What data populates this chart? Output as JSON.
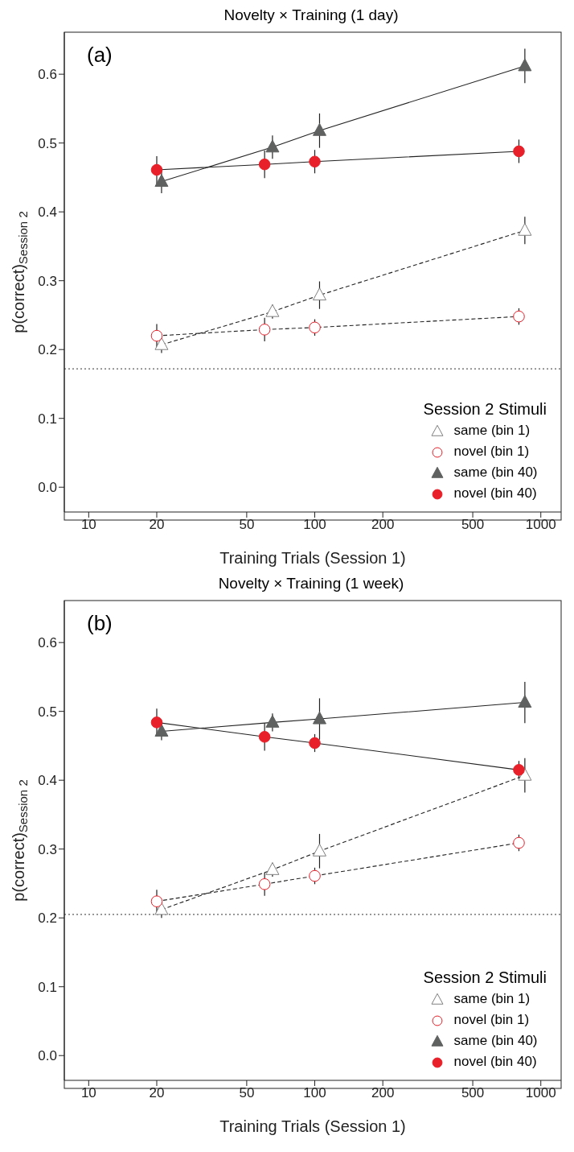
{
  "chart_data": [
    {
      "type": "line",
      "title": "Novelty × Training (1 day)",
      "xlabel": "Training Trials (Session 1)",
      "ylabel": "p(correct)$_{Session 2}$",
      "legend_title": "Session 2 Stimuli",
      "legend": "bottom right",
      "log": "x",
      "annotations": [
        "(a)"
      ],
      "xlim": [
        7.8,
        1230
      ],
      "xticks": [
        10,
        20,
        50,
        100,
        200,
        500,
        1000
      ],
      "ylim": [
        -0.036,
        0.661
      ],
      "yticks": [
        {
          "value": 0,
          "label": "0.0"
        },
        0.1,
        0.2,
        0.3,
        0.4,
        0.5,
        0.6
      ],
      "ref_lines": [
        {
          "axis": "y",
          "value": 0.172,
          "line_style": "dotted",
          "color": "#333333"
        }
      ],
      "series": [
        {
          "name": "same (bin 1)",
          "color": "#808080",
          "marker": "triangle",
          "line_style": "dashed",
          "x": [
            21,
            65,
            105,
            850
          ],
          "values": [
            0.207,
            0.255,
            0.279,
            0.373
          ],
          "errors": [
            0.012,
            0.01,
            0.02,
            0.02
          ]
        },
        {
          "name": "novel (bin 1)",
          "color": "#e8202a",
          "marker": "circle",
          "line_style": "dashed",
          "x": [
            20,
            60,
            100,
            800
          ],
          "values": [
            0.22,
            0.229,
            0.232,
            0.248
          ],
          "errors": [
            0.017,
            0.017,
            0.012,
            0.012
          ]
        },
        {
          "name": "same (bin 40)",
          "color": "#5f6060",
          "marker": "triangle",
          "line_style": "solid",
          "x": [
            21,
            65,
            105,
            850
          ],
          "values": [
            0.444,
            0.494,
            0.518,
            0.612
          ],
          "errors": [
            0.017,
            0.017,
            0.025,
            0.025
          ]
        },
        {
          "name": "novel (bin 40)",
          "color": "#e8202a",
          "marker": "circle",
          "line_style": "solid",
          "x": [
            20,
            60,
            100,
            800
          ],
          "values": [
            0.461,
            0.469,
            0.473,
            0.488
          ],
          "errors": [
            0.02,
            0.02,
            0.017,
            0.017
          ]
        }
      ]
    },
    {
      "type": "line",
      "title": "Novelty × Training (1 week)",
      "xlabel": "Training Trials (Session 1)",
      "ylabel": "p(correct)$_{Session 2}$",
      "legend_title": "Session 2 Stimuli",
      "legend": "bottom right",
      "log": "x",
      "annotations": [
        "(b)"
      ],
      "xlim": [
        7.8,
        1230
      ],
      "xticks": [
        10,
        20,
        50,
        100,
        200,
        500,
        1000
      ],
      "ylim": [
        -0.036,
        0.661
      ],
      "yticks": [
        {
          "value": 0,
          "label": "0.0"
        },
        0.1,
        0.2,
        0.3,
        0.4,
        0.5,
        0.6
      ],
      "ref_lines": [
        {
          "axis": "y",
          "value": 0.205,
          "line_style": "dotted",
          "color": "#333333"
        }
      ],
      "series": [
        {
          "name": "same (bin 1)",
          "color": "#808080",
          "marker": "triangle",
          "line_style": "dashed",
          "x": [
            21,
            65,
            105,
            850
          ],
          "values": [
            0.212,
            0.27,
            0.297,
            0.407
          ],
          "errors": [
            0.012,
            0.01,
            0.025,
            0.025
          ]
        },
        {
          "name": "novel (bin 1)",
          "color": "#e8202a",
          "marker": "circle",
          "line_style": "dashed",
          "x": [
            20,
            60,
            100,
            800
          ],
          "values": [
            0.224,
            0.249,
            0.261,
            0.309
          ],
          "errors": [
            0.017,
            0.017,
            0.012,
            0.012
          ]
        },
        {
          "name": "same (bin 40)",
          "color": "#5f6060",
          "marker": "triangle",
          "line_style": "solid",
          "x": [
            21,
            65,
            105,
            850
          ],
          "values": [
            0.471,
            0.484,
            0.489,
            0.513
          ],
          "errors": [
            0.013,
            0.013,
            0.03,
            0.03
          ]
        },
        {
          "name": "novel (bin 40)",
          "color": "#e8202a",
          "marker": "circle",
          "line_style": "solid",
          "x": [
            20,
            60,
            100,
            800
          ],
          "values": [
            0.484,
            0.463,
            0.454,
            0.415
          ],
          "errors": [
            0.02,
            0.02,
            0.013,
            0.013
          ]
        }
      ]
    }
  ]
}
